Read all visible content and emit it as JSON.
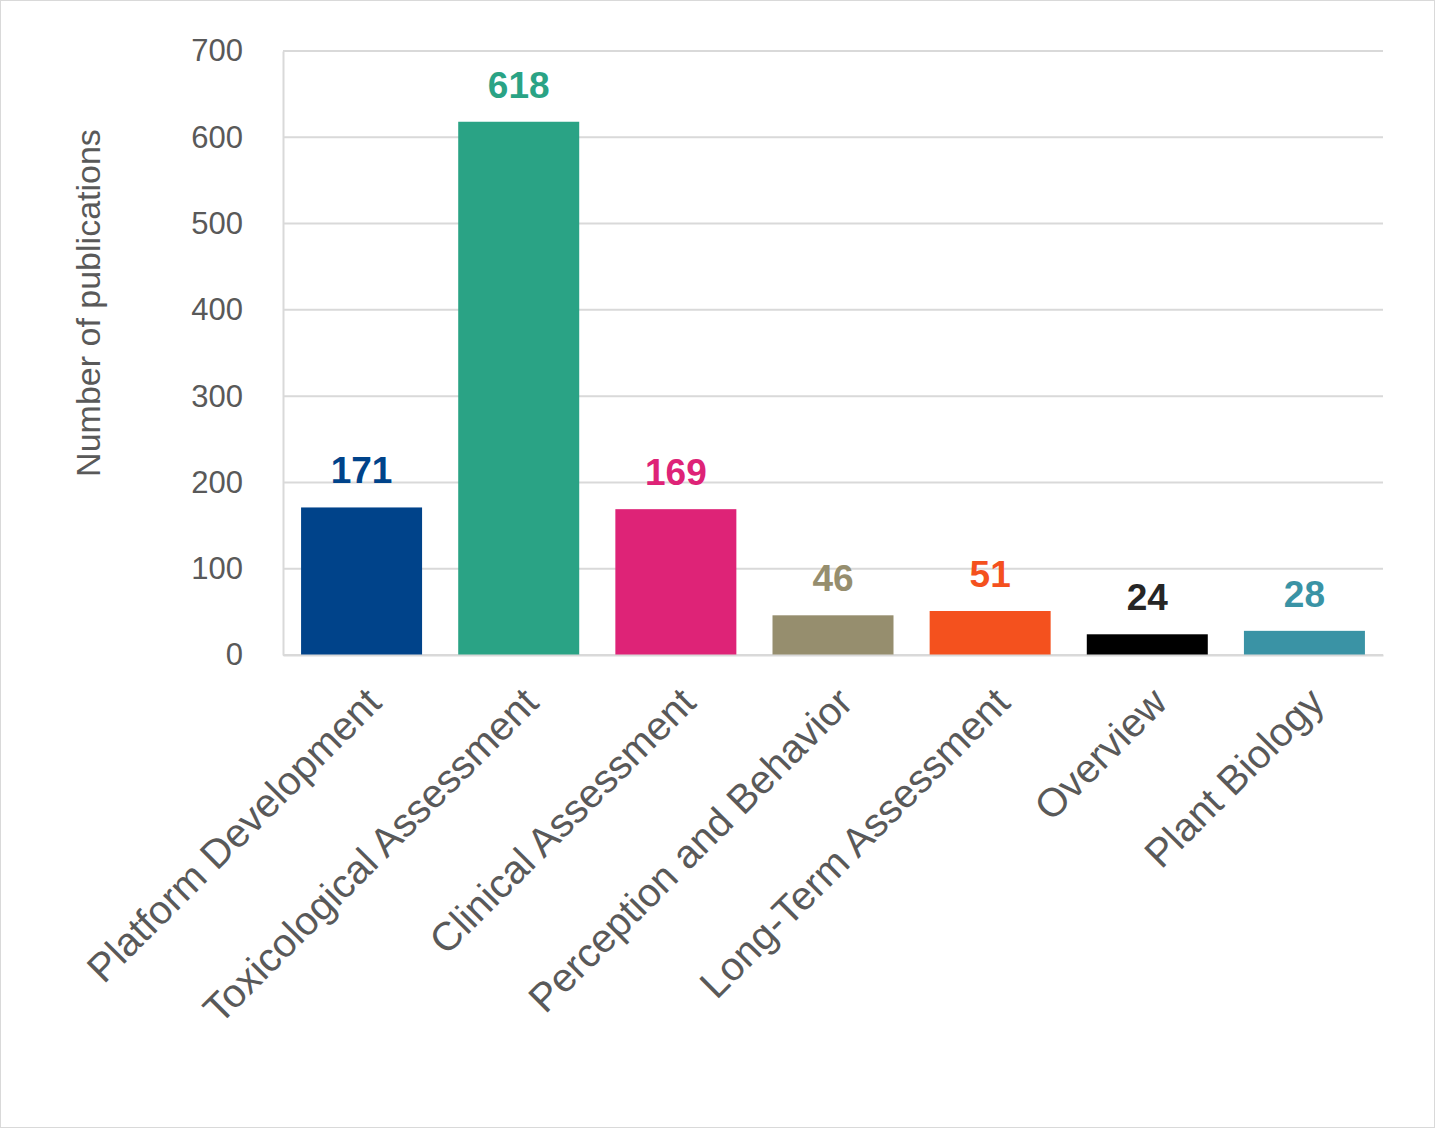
{
  "chart_data": {
    "type": "bar",
    "y_label": "Number of publications",
    "categories": [
      "Platform Development",
      "Toxicological Assessment",
      "Clinical Assessment",
      "Perception and Behavior",
      "Long-Term Assessment",
      "Overview",
      "Plant Biology"
    ],
    "values": [
      171,
      618,
      169,
      46,
      51,
      24,
      28
    ],
    "colors": [
      "#00438a",
      "#2aa385",
      "#de2377",
      "#968e6e",
      "#f4511e",
      "#000000",
      "#3a93a5"
    ],
    "ylim": [
      0,
      700
    ],
    "yticks": [
      0,
      100,
      200,
      300,
      400,
      500,
      600,
      700
    ],
    "grid": true,
    "data_labels": true
  }
}
